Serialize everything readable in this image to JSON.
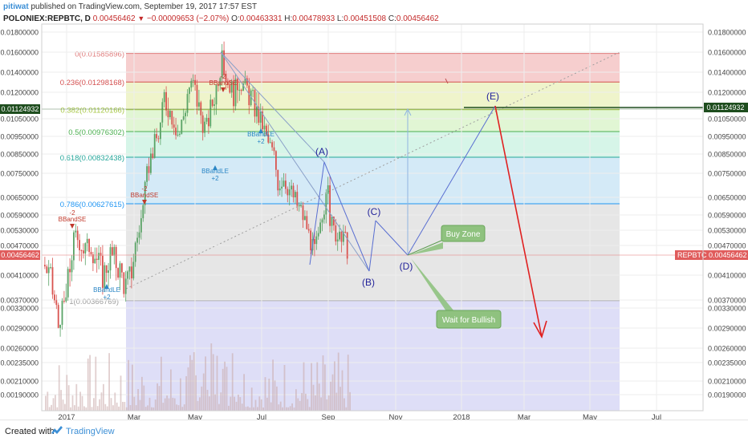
{
  "header": {
    "author": "pitiwat",
    "published": " published on TradingView.com, September 19, 2017 17:57 EST",
    "symbol_line": "POLONIEX:REPBTC, D",
    "last_value": "0.00456462",
    "change": "−0.00009653 (−2.07%)",
    "open_label": "O:",
    "open": "0.00463331",
    "high_label": "H:",
    "high": "0.00478933",
    "low_label": "L:",
    "low": "0.00451508",
    "close_label": "C:",
    "close": "0.00456462"
  },
  "footer": {
    "created_with": "Created with",
    "brand": "TradingView"
  },
  "chart_data": {
    "type": "candlestick",
    "symbol": "REPBTC",
    "y_ticks": [
      "0.01800000",
      "0.01600000",
      "0.01400000",
      "0.01200000",
      "0.01050000",
      "0.00950000",
      "0.00850000",
      "0.00750000",
      "0.00650000",
      "0.00590000",
      "0.00530000",
      "0.00470000",
      "0.00410000",
      "0.00370000",
      "0.00330000",
      "0.00290000",
      "0.00260000",
      "0.00235000",
      "0.00210000",
      "0.00190000"
    ],
    "x_ticks": [
      "2017",
      "Mar",
      "May",
      "Jul",
      "Sep",
      "Nov",
      "2018",
      "Mar",
      "May",
      "Jul"
    ],
    "price_label": "0.00456462",
    "price_tag": "REPBTC",
    "price_tag_value": "0.00456462",
    "level_line_label": "0.01124932",
    "fib_levels": [
      {
        "ratio": "0",
        "label": "0(0.01585896)",
        "value": 0.01585896,
        "fill": "#f4c5c5",
        "line": "#e07b7b"
      },
      {
        "ratio": "0.236",
        "label": "0.236(0.01298168)",
        "value": 0.01298168,
        "fill": "#ecf2c2",
        "line": "#d45050"
      },
      {
        "ratio": "0.382",
        "label": "0.382(0.01120166)",
        "value": 0.01120166,
        "fill": "#dcf5cc",
        "line": "#a9c84a"
      },
      {
        "ratio": "0.5",
        "label": "0.5(0.00976302)",
        "value": 0.00976302,
        "fill": "#cff3e4",
        "line": "#4caf50"
      },
      {
        "ratio": "0.618",
        "label": "0.618(0.00832438)",
        "value": 0.00832438,
        "fill": "#cde6f6",
        "line": "#26a69a"
      },
      {
        "ratio": "0.786",
        "label": "0.786(0.00627615)",
        "value": 0.00627615,
        "fill": "#e2e2e2",
        "line": "#2196f3"
      },
      {
        "ratio": "1",
        "label": "1(0.00366769)",
        "value": 0.00366769,
        "fill": "#d8d8f6",
        "line": "#9e9e9e"
      }
    ],
    "wave_labels": [
      "(A)",
      "(B)",
      "(C)",
      "(D)",
      "(E)"
    ],
    "callouts": {
      "buy_zone": "Buy Zone",
      "wait": "Wait for Bullish"
    },
    "signals": [
      "BBandSE",
      "BBandSE",
      "BBandSE",
      "BBandLE",
      "BBandLE",
      "BBandLE"
    ],
    "signal_counts": [
      "-2",
      "-2",
      "-2",
      "+2",
      "+2",
      "+2"
    ],
    "candles_approx": [
      {
        "x": "2017-01",
        "close": 0.0042
      },
      {
        "x": "2017-01-20",
        "close": 0.0029
      },
      {
        "x": "2017-02",
        "close": 0.0049
      },
      {
        "x": "2017-02-20",
        "close": 0.0038
      },
      {
        "x": "2017-03",
        "close": 0.0062
      },
      {
        "x": "2017-03-15",
        "close": 0.0098
      },
      {
        "x": "2017-04",
        "close": 0.0125
      },
      {
        "x": "2017-05",
        "close": 0.0118
      },
      {
        "x": "2017-05-20",
        "close": 0.0158
      },
      {
        "x": "2017-06",
        "close": 0.0125
      },
      {
        "x": "2017-07",
        "close": 0.0095
      },
      {
        "x": "2017-07-20",
        "close": 0.0065
      },
      {
        "x": "2017-08",
        "close": 0.006
      },
      {
        "x": "2017-08-20",
        "close": 0.0045
      },
      {
        "x": "2017-09",
        "close": 0.0056
      },
      {
        "x": "2017-09-19",
        "close": 0.00456
      }
    ]
  }
}
